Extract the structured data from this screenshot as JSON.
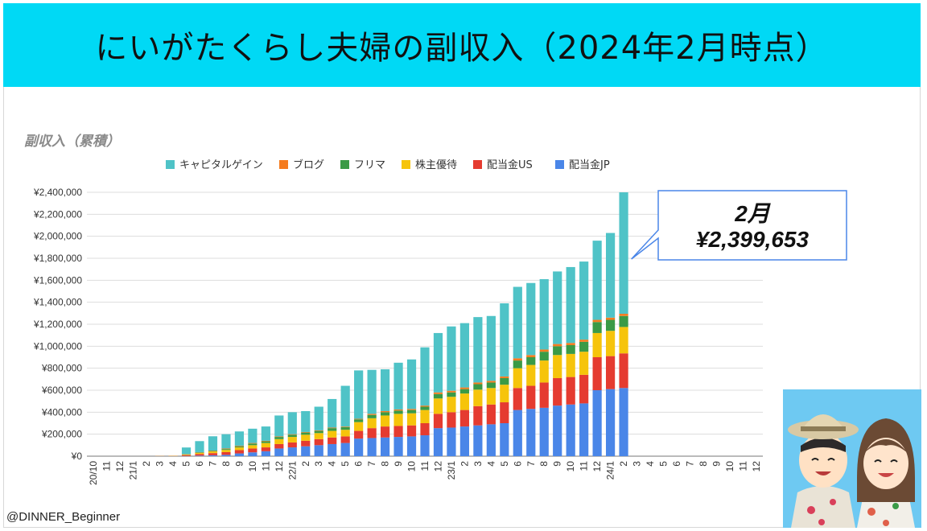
{
  "title": "にいがたくらし夫婦の副収入（2024年2月時点）",
  "credit": "@DINNER_Beginner",
  "callout": {
    "month": "2月",
    "value": "¥2,399,653"
  },
  "colors": {
    "banner": "#00d9f5",
    "キャピタルゲイン": "#4fc3c7",
    "ブログ": "#f57c1f",
    "フリマ": "#3a9a46",
    "株主優待": "#f6c40b",
    "配当金US": "#e53b30",
    "配当金JP": "#4a86e8"
  },
  "chart_data": {
    "type": "bar",
    "stacked": true,
    "title": "副収入（累積）",
    "xlabel": "",
    "ylabel": "",
    "ylim": [
      0,
      2400000
    ],
    "yticks": [
      "¥0",
      "¥200,000",
      "¥400,000",
      "¥600,000",
      "¥800,000",
      "¥1,000,000",
      "¥1,200,000",
      "¥1,400,000",
      "¥1,600,000",
      "¥1,800,000",
      "¥2,000,000",
      "¥2,200,000",
      "¥2,400,000"
    ],
    "legend_position": "top",
    "grid": true,
    "categories": [
      "20/10",
      "11",
      "12",
      "21/1",
      "2",
      "3",
      "4",
      "5",
      "6",
      "7",
      "8",
      "9",
      "10",
      "11",
      "12",
      "22/1",
      "2",
      "3",
      "4",
      "5",
      "6",
      "7",
      "8",
      "9",
      "10",
      "11",
      "12",
      "23/1",
      "2",
      "3",
      "4",
      "5",
      "6",
      "7",
      "8",
      "9",
      "10",
      "11",
      "12",
      "24/1",
      "2",
      "3",
      "4",
      "5",
      "6",
      "7",
      "8",
      "9",
      "10",
      "11",
      "12"
    ],
    "series": [
      {
        "name": "配当金JP",
        "values": [
          0,
          0,
          0,
          0,
          0,
          0,
          0,
          2000,
          5000,
          8000,
          12000,
          25000,
          35000,
          45000,
          70000,
          80000,
          90000,
          100000,
          110000,
          120000,
          160000,
          165000,
          170000,
          175000,
          180000,
          190000,
          255000,
          260000,
          270000,
          280000,
          290000,
          300000,
          420000,
          430000,
          440000,
          460000,
          470000,
          480000,
          600000,
          610000,
          620000,
          null,
          null,
          null,
          null,
          null,
          null,
          null,
          null,
          null,
          null
        ]
      },
      {
        "name": "配当金US",
        "values": [
          0,
          0,
          0,
          0,
          0,
          1000,
          2000,
          8000,
          15000,
          20000,
          25000,
          30000,
          35000,
          35000,
          40000,
          45000,
          50000,
          55000,
          60000,
          60000,
          70000,
          90000,
          100000,
          100000,
          100000,
          110000,
          130000,
          140000,
          150000,
          175000,
          180000,
          190000,
          200000,
          210000,
          230000,
          250000,
          250000,
          260000,
          300000,
          300000,
          315000,
          null,
          null,
          null,
          null,
          null,
          null,
          null,
          null,
          null,
          null
        ]
      },
      {
        "name": "株主優待",
        "values": [
          0,
          0,
          0,
          0,
          0,
          1000,
          2000,
          5000,
          10000,
          15000,
          20000,
          25000,
          30000,
          40000,
          45000,
          50000,
          55000,
          55000,
          60000,
          60000,
          80000,
          90000,
          100000,
          110000,
          110000,
          120000,
          140000,
          140000,
          150000,
          150000,
          150000,
          160000,
          180000,
          190000,
          200000,
          210000,
          210000,
          210000,
          220000,
          230000,
          240000,
          null,
          null,
          null,
          null,
          null,
          null,
          null,
          null,
          null,
          null
        ]
      },
      {
        "name": "フリマ",
        "values": [
          0,
          0,
          0,
          0,
          0,
          0,
          0,
          2000,
          5000,
          5000,
          8000,
          10000,
          15000,
          15000,
          20000,
          20000,
          20000,
          20000,
          25000,
          25000,
          25000,
          30000,
          30000,
          30000,
          30000,
          30000,
          40000,
          40000,
          40000,
          50000,
          50000,
          60000,
          70000,
          70000,
          80000,
          80000,
          80000,
          90000,
          100000,
          100000,
          100000,
          null,
          null,
          null,
          null,
          null,
          null,
          null,
          null,
          null,
          null
        ]
      },
      {
        "name": "ブログ",
        "values": [
          0,
          0,
          0,
          0,
          0,
          0,
          0,
          2000,
          2000,
          3000,
          5000,
          5000,
          5000,
          5000,
          5000,
          5000,
          5000,
          5000,
          5000,
          5000,
          5000,
          10000,
          10000,
          10000,
          10000,
          10000,
          15000,
          15000,
          15000,
          15000,
          15000,
          15000,
          20000,
          20000,
          20000,
          20000,
          20000,
          20000,
          20000,
          20000,
          20000,
          null,
          null,
          null,
          null,
          null,
          null,
          null,
          null,
          null,
          null
        ]
      },
      {
        "name": "キャピタルゲイン",
        "values": [
          0,
          0,
          0,
          0,
          0,
          0,
          0,
          60000,
          100000,
          130000,
          130000,
          130000,
          130000,
          130000,
          190000,
          200000,
          190000,
          215000,
          260000,
          370000,
          440000,
          400000,
          380000,
          425000,
          450000,
          530000,
          540000,
          585000,
          585000,
          595000,
          590000,
          665000,
          650000,
          655000,
          640000,
          660000,
          690000,
          710000,
          720000,
          770000,
          1104653,
          null,
          null,
          null,
          null,
          null,
          null,
          null,
          null,
          null,
          null
        ]
      }
    ]
  }
}
